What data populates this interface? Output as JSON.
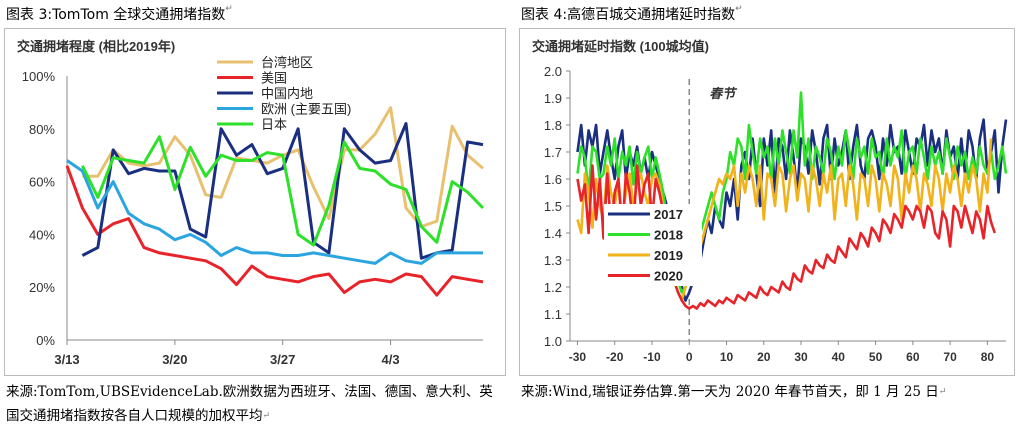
{
  "figures": [
    {
      "title": "图表 3:TomTom 全球交通拥堵指数",
      "source": "来源:TomTom,UBSEvidenceLab.欧洲数据为西班牙、法国、德国、意大利、英国交通拥堵指数按各自人口规模的加权平均",
      "return_mark": "↵"
    },
    {
      "title": "图表 4:高德百城交通拥堵延时指数",
      "source": "来源:Wind,瑞银证券估算.第一天为 2020 年春节首天，即 1 月 25 日",
      "return_mark": "↵"
    }
  ],
  "chart_data": [
    {
      "type": "line",
      "title": "交通拥堵程度 (相比2019年)",
      "x_tick_labels": [
        "3/13",
        "3/20",
        "3/27",
        "4/3"
      ],
      "x_ticks": [
        0,
        7,
        14,
        21
      ],
      "xlim": [
        0,
        27
      ],
      "ylim": [
        0,
        100
      ],
      "y_tick_labels": [
        "0%",
        "20%",
        "40%",
        "60%",
        "80%",
        "100%"
      ],
      "y_ticks": [
        0,
        20,
        40,
        60,
        80,
        100
      ],
      "legend_position": "top-right",
      "series": [
        {
          "name": "台湾地区",
          "color": "#e8c170",
          "x": [
            1,
            2,
            3,
            4,
            5,
            6,
            7,
            8,
            9,
            10,
            11,
            12,
            13,
            14,
            15,
            16,
            17,
            18,
            19,
            20,
            21,
            22,
            23,
            24,
            25,
            26,
            27
          ],
          "values": [
            62,
            62,
            72,
            67,
            66,
            67,
            77,
            70,
            55,
            54,
            69,
            68,
            67,
            70,
            72,
            58,
            46,
            72,
            72,
            78,
            88,
            50,
            43,
            45,
            81,
            70,
            65
          ]
        },
        {
          "name": "美国",
          "color": "#e8242b",
          "x": [
            0,
            1,
            2,
            3,
            4,
            5,
            6,
            7,
            8,
            9,
            10,
            11,
            12,
            13,
            14,
            15,
            16,
            17,
            18,
            19,
            20,
            21,
            22,
            23,
            24,
            25,
            26,
            27
          ],
          "values": [
            66,
            50,
            40,
            44,
            46,
            35,
            33,
            32,
            31,
            30,
            27,
            21,
            28,
            24,
            23,
            22,
            24,
            25,
            18,
            22,
            23,
            22,
            25,
            24,
            17,
            24,
            23,
            22
          ]
        },
        {
          "name": "中国内地",
          "color": "#1a2f80",
          "x": [
            1,
            2,
            3,
            4,
            5,
            6,
            7,
            8,
            9,
            10,
            11,
            12,
            13,
            14,
            15,
            16,
            17,
            18,
            19,
            20,
            21,
            22,
            23,
            24,
            25,
            26,
            27
          ],
          "values": [
            32,
            35,
            72,
            63,
            65,
            64,
            64,
            42,
            39,
            80,
            70,
            74,
            63,
            65,
            80,
            37,
            33,
            80,
            72,
            67,
            68,
            82,
            31,
            33,
            34,
            75,
            74
          ]
        },
        {
          "name": "欧洲 (主要五国)",
          "color": "#2aa5e0",
          "x": [
            0,
            1,
            2,
            3,
            4,
            5,
            6,
            7,
            8,
            9,
            10,
            11,
            12,
            13,
            14,
            15,
            16,
            17,
            18,
            19,
            20,
            21,
            22,
            23,
            24,
            25,
            26,
            27
          ],
          "values": [
            68,
            64,
            50,
            60,
            48,
            44,
            42,
            38,
            40,
            37,
            32,
            35,
            33,
            33,
            32,
            32,
            33,
            32,
            31,
            30,
            29,
            33,
            30,
            29,
            33,
            33,
            33,
            33
          ]
        },
        {
          "name": "日本",
          "color": "#2ee02a",
          "x": [
            1,
            2,
            3,
            4,
            5,
            6,
            7,
            8,
            9,
            10,
            11,
            12,
            13,
            14,
            15,
            16,
            17,
            18,
            19,
            20,
            21,
            22,
            23,
            24,
            25,
            26,
            27
          ],
          "values": [
            66,
            54,
            69,
            68,
            67,
            77,
            57,
            73,
            62,
            70,
            68,
            68,
            71,
            70,
            40,
            36,
            51,
            75,
            65,
            64,
            59,
            57,
            43,
            37,
            60,
            56,
            50
          ]
        }
      ]
    },
    {
      "type": "line",
      "title": "交通拥堵延时指数 (100城均值)",
      "x_tick_labels": [
        "-30",
        "-20",
        "-10",
        "0",
        "10",
        "20",
        "30",
        "40",
        "50",
        "60",
        "70",
        "80"
      ],
      "x_ticks": [
        -30,
        -20,
        -10,
        0,
        10,
        20,
        30,
        40,
        50,
        60,
        70,
        80
      ],
      "xlim": [
        -32,
        85
      ],
      "ylim": [
        1.0,
        2.0
      ],
      "y_tick_labels": [
        "1.0",
        "1.1",
        "1.2",
        "1.3",
        "1.4",
        "1.5",
        "1.6",
        "1.7",
        "1.8",
        "1.9",
        "2.0"
      ],
      "y_ticks": [
        1.0,
        1.1,
        1.2,
        1.3,
        1.4,
        1.5,
        1.6,
        1.7,
        1.8,
        1.9,
        2.0
      ],
      "annotation": {
        "text": "春节",
        "x": 0
      },
      "legend_position": "bottom-left",
      "series": [
        {
          "name": "2017",
          "color": "#1a2f80",
          "x_start": -30,
          "x_step": 1,
          "values": [
            1.7,
            1.8,
            1.65,
            1.78,
            1.72,
            1.8,
            1.62,
            1.7,
            1.78,
            1.68,
            1.6,
            1.72,
            1.78,
            1.6,
            1.7,
            1.65,
            1.72,
            1.62,
            1.68,
            1.6,
            1.7,
            1.65,
            1.6,
            1.55,
            1.5,
            1.4,
            1.3,
            1.25,
            1.2,
            1.15,
            1.18,
            1.22,
            1.25,
            1.3,
            1.38,
            1.45,
            1.4,
            1.5,
            1.45,
            1.42,
            1.55,
            1.5,
            1.6,
            1.45,
            1.65,
            1.7,
            1.6,
            1.75,
            1.62,
            1.5,
            1.75,
            1.65,
            1.78,
            1.55,
            1.75,
            1.72,
            1.6,
            1.78,
            1.68,
            1.55,
            1.75,
            1.72,
            1.62,
            1.78,
            1.7,
            1.58,
            1.75,
            1.8,
            1.6,
            1.75,
            1.65,
            1.7,
            1.78,
            1.6,
            1.72,
            1.8,
            1.65,
            1.6,
            1.75,
            1.78,
            1.72,
            1.6,
            1.75,
            1.65,
            1.8,
            1.7,
            1.72,
            1.62,
            1.78,
            1.7,
            1.62,
            1.75,
            1.72,
            1.8,
            1.65,
            1.78,
            1.7,
            1.75,
            1.62,
            1.78,
            1.68,
            1.72,
            1.6,
            1.75,
            1.62,
            1.78,
            1.72,
            1.6,
            1.75,
            1.82,
            1.62,
            1.7,
            1.78,
            1.55,
            1.72,
            1.82
          ]
        },
        {
          "name": "2018",
          "color": "#2ee02a",
          "x_start": -30,
          "x_step": 1,
          "values": [
            1.62,
            1.72,
            1.68,
            1.55,
            1.72,
            1.7,
            1.6,
            1.62,
            1.72,
            1.65,
            1.75,
            1.6,
            1.7,
            1.65,
            1.72,
            1.58,
            1.7,
            1.62,
            1.68,
            1.72,
            1.6,
            1.68,
            1.62,
            1.55,
            1.45,
            1.35,
            1.28,
            1.22,
            1.18,
            1.2,
            1.25,
            1.3,
            1.35,
            1.4,
            1.45,
            1.5,
            1.55,
            1.5,
            1.45,
            1.55,
            1.6,
            1.7,
            1.65,
            1.75,
            1.72,
            1.6,
            1.8,
            1.7,
            1.62,
            1.75,
            1.68,
            1.72,
            1.6,
            1.75,
            1.65,
            1.78,
            1.7,
            1.62,
            1.78,
            1.68,
            1.92,
            1.65,
            1.75,
            1.6,
            1.72,
            1.68,
            1.62,
            1.75,
            1.7,
            1.6,
            1.72,
            1.65,
            1.78,
            1.7,
            1.6,
            1.75,
            1.68,
            1.72,
            1.62,
            1.75,
            1.68,
            1.7,
            1.6,
            1.75,
            1.65,
            1.72,
            1.68,
            1.78,
            1.6,
            1.7,
            1.72,
            1.62,
            1.75,
            1.68,
            1.6,
            1.72,
            1.65,
            1.7,
            1.62,
            1.75,
            1.68,
            1.6,
            1.72,
            1.65,
            1.7,
            1.6,
            1.68,
            1.62,
            1.72,
            1.65,
            1.62,
            1.7,
            1.6,
            1.65,
            1.72,
            1.62
          ]
        },
        {
          "name": "2019",
          "color": "#f2b21b",
          "x_start": -30,
          "x_step": 1,
          "values": [
            1.45,
            1.4,
            1.62,
            1.55,
            1.42,
            1.6,
            1.5,
            1.45,
            1.65,
            1.55,
            1.5,
            1.6,
            1.45,
            1.55,
            1.62,
            1.5,
            1.58,
            1.62,
            1.55,
            1.5,
            1.6,
            1.62,
            1.58,
            1.5,
            1.42,
            1.32,
            1.22,
            1.18,
            1.15,
            1.2,
            1.25,
            1.28,
            1.3,
            1.35,
            1.4,
            1.45,
            1.5,
            1.55,
            1.6,
            1.58,
            1.62,
            1.6,
            1.65,
            1.5,
            1.62,
            1.55,
            1.65,
            1.6,
            1.5,
            1.65,
            1.45,
            1.62,
            1.6,
            1.5,
            1.65,
            1.62,
            1.48,
            1.6,
            1.65,
            1.52,
            1.62,
            1.6,
            1.48,
            1.65,
            1.6,
            1.5,
            1.62,
            1.55,
            1.65,
            1.45,
            1.6,
            1.62,
            1.5,
            1.65,
            1.58,
            1.45,
            1.62,
            1.6,
            1.5,
            1.65,
            1.6,
            1.48,
            1.62,
            1.58,
            1.5,
            1.65,
            1.6,
            1.45,
            1.62,
            1.55,
            1.65,
            1.6,
            1.48,
            1.62,
            1.58,
            1.5,
            1.65,
            1.6,
            1.48,
            1.62,
            1.55,
            1.65,
            1.6,
            1.5,
            1.62,
            1.55,
            1.65,
            1.6,
            1.48,
            1.62,
            1.55,
            1.75
          ]
        },
        {
          "name": "2020",
          "color": "#e8242b",
          "x_start": -30,
          "x_step": 1,
          "values": [
            1.6,
            1.52,
            1.58,
            1.4,
            1.65,
            1.45,
            1.6,
            1.38,
            1.62,
            1.42,
            1.55,
            1.6,
            1.4,
            1.62,
            1.55,
            1.42,
            1.65,
            1.5,
            1.58,
            1.62,
            1.45,
            1.6,
            1.55,
            1.48,
            1.4,
            1.3,
            1.22,
            1.18,
            1.15,
            1.13,
            1.12,
            1.13,
            1.12,
            1.14,
            1.13,
            1.15,
            1.14,
            1.13,
            1.15,
            1.14,
            1.16,
            1.15,
            1.14,
            1.17,
            1.16,
            1.15,
            1.18,
            1.17,
            1.16,
            1.2,
            1.18,
            1.17,
            1.2,
            1.19,
            1.18,
            1.22,
            1.2,
            1.19,
            1.25,
            1.23,
            1.22,
            1.28,
            1.26,
            1.25,
            1.3,
            1.28,
            1.27,
            1.32,
            1.3,
            1.29,
            1.35,
            1.33,
            1.31,
            1.38,
            1.36,
            1.34,
            1.4,
            1.38,
            1.35,
            1.42,
            1.4,
            1.37,
            1.45,
            1.43,
            1.4,
            1.47,
            1.45,
            1.42,
            1.5,
            1.48,
            1.45,
            1.5,
            1.48,
            1.42,
            1.5,
            1.48,
            1.4,
            1.38,
            1.48,
            1.45,
            1.35,
            1.5,
            1.48,
            1.42,
            1.5,
            1.45,
            1.4,
            1.48,
            1.45,
            1.38,
            1.5,
            1.44,
            1.4
          ]
        }
      ]
    }
  ]
}
